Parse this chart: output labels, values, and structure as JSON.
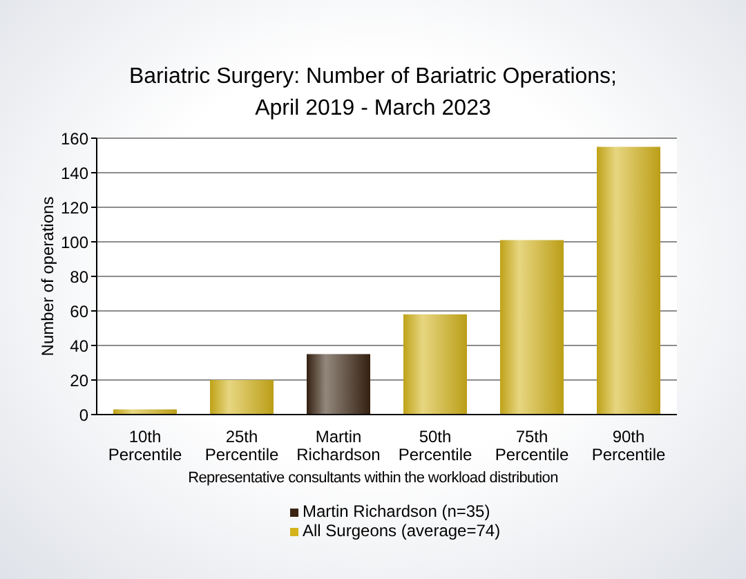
{
  "chart_data": {
    "type": "bar",
    "title": "Bariatric Surgery: Number of Bariatric Operations;\nApril 2019 - March 2023",
    "xlabel": "Representative consultants within the workload distribution",
    "ylabel": "Number of operations",
    "categories": [
      "10th Percentile",
      "25th Percentile",
      "Martin Richardson",
      "50th Percentile",
      "75th Percentile",
      "90th Percentile"
    ],
    "series": [
      {
        "name": "Martin Richardson (n=35)",
        "color": "#3a2412",
        "values": [
          null,
          null,
          35,
          null,
          null,
          null
        ]
      },
      {
        "name": "All Surgeons (average=74)",
        "color": "#d4b41a",
        "values": [
          3,
          20,
          null,
          58,
          101,
          155
        ]
      }
    ],
    "stacked": true,
    "ylim": [
      0,
      160
    ],
    "yticks": [
      0,
      20,
      40,
      60,
      80,
      100,
      120,
      140,
      160
    ],
    "grid": "y",
    "legend": "bottom"
  }
}
